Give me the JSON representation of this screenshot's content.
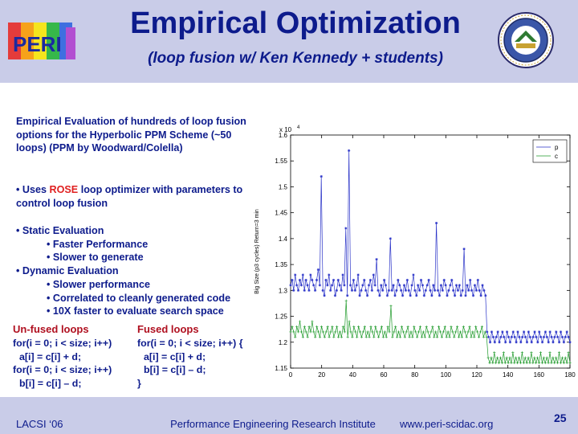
{
  "header": {
    "title": "Empirical Optimization",
    "subtitle": "(loop fusion w/ Ken Kennedy + students)",
    "logo_text": "PERI"
  },
  "intro_text": "Empirical Evaluation of hundreds of loop fusion options for the Hyperbolic PPM Scheme (~50 loops) (PPM by Woodward/Colella)",
  "rose_line": {
    "prefix": "• Uses ",
    "highlight": "ROSE",
    "suffix": " loop optimizer with parameters to control loop fusion"
  },
  "evaluations": [
    {
      "text": "• Static Evaluation",
      "level": 0
    },
    {
      "text": "• Faster Performance",
      "level": 1
    },
    {
      "text": "• Slower to generate",
      "level": 1
    },
    {
      "text": "• Dynamic Evaluation",
      "level": 0
    },
    {
      "text": "• Slower performance",
      "level": 1
    },
    {
      "text": "• Correlated to cleanly generated code",
      "level": 1
    },
    {
      "text": "• 10X faster to evaluate search space",
      "level": 1
    }
  ],
  "unfused": {
    "heading": "Un-fused loops",
    "lines": [
      "for(i = 0; i < size; i++)",
      "a[i] = c[i] + d;",
      "for(i = 0; i < size; i++)",
      "b[i] = c[i] – d;"
    ]
  },
  "fused": {
    "heading": "Fused loops",
    "lines": [
      "for(i = 0; i < size; i++) {",
      "a[i] = c[i] + d;",
      "b[i] = c[i] – d;",
      "}"
    ]
  },
  "chart_data": {
    "type": "line",
    "title": "",
    "xlabel": "",
    "ylabel": "Big Size (p3 cycles) Return=3  min",
    "multiplier_label": "x 10",
    "multiplier_exp": "4",
    "xlim": [
      0,
      180
    ],
    "ylim": [
      1.15,
      1.6
    ],
    "xticks": [
      0,
      20,
      40,
      60,
      80,
      100,
      120,
      140,
      160,
      180
    ],
    "yticks": [
      1.15,
      1.2,
      1.25,
      1.3,
      1.35,
      1.4,
      1.45,
      1.5,
      1.55,
      1.6
    ],
    "legend_position": "top-right",
    "colors": {
      "p": "#2a33c8",
      "c": "#1f9a2a"
    },
    "series": [
      {
        "name": "p",
        "values": [
          1.31,
          1.32,
          1.3,
          1.33,
          1.31,
          1.3,
          1.32,
          1.31,
          1.33,
          1.3,
          1.32,
          1.31,
          1.3,
          1.33,
          1.32,
          1.31,
          1.3,
          1.32,
          1.34,
          1.31,
          1.52,
          1.3,
          1.29,
          1.32,
          1.31,
          1.33,
          1.3,
          1.31,
          1.32,
          1.29,
          1.3,
          1.32,
          1.31,
          1.3,
          1.33,
          1.31,
          1.42,
          1.29,
          1.57,
          1.31,
          1.3,
          1.32,
          1.3,
          1.31,
          1.33,
          1.29,
          1.3,
          1.31,
          1.32,
          1.3,
          1.29,
          1.31,
          1.32,
          1.3,
          1.33,
          1.31,
          1.36,
          1.3,
          1.29,
          1.31,
          1.3,
          1.32,
          1.31,
          1.29,
          1.3,
          1.4,
          1.3,
          1.31,
          1.29,
          1.3,
          1.32,
          1.31,
          1.3,
          1.29,
          1.31,
          1.3,
          1.32,
          1.3,
          1.29,
          1.31,
          1.33,
          1.3,
          1.29,
          1.31,
          1.3,
          1.32,
          1.31,
          1.29,
          1.3,
          1.31,
          1.32,
          1.3,
          1.29,
          1.31,
          1.3,
          1.43,
          1.3,
          1.29,
          1.31,
          1.3,
          1.32,
          1.31,
          1.29,
          1.3,
          1.31,
          1.32,
          1.3,
          1.29,
          1.31,
          1.3,
          1.31,
          1.29,
          1.3,
          1.38,
          1.29,
          1.31,
          1.3,
          1.32,
          1.3,
          1.29,
          1.31,
          1.3,
          1.32,
          1.3,
          1.29,
          1.31,
          1.3,
          1.29,
          1.22,
          1.21,
          1.2,
          1.22,
          1.21,
          1.2,
          1.21,
          1.22,
          1.2,
          1.21,
          1.22,
          1.21,
          1.2,
          1.22,
          1.21,
          1.2,
          1.21,
          1.22,
          1.21,
          1.2,
          1.22,
          1.21,
          1.2,
          1.21,
          1.22,
          1.21,
          1.2,
          1.22,
          1.21,
          1.2,
          1.21,
          1.22,
          1.21,
          1.2,
          1.22,
          1.21,
          1.2,
          1.21,
          1.22,
          1.21,
          1.2,
          1.22,
          1.21,
          1.2,
          1.21,
          1.22,
          1.21,
          1.2,
          1.22,
          1.21,
          1.2,
          1.21,
          1.22,
          1.21,
          1.2
        ]
      },
      {
        "name": "c",
        "values": [
          1.22,
          1.23,
          1.22,
          1.21,
          1.23,
          1.22,
          1.24,
          1.22,
          1.21,
          1.23,
          1.22,
          1.21,
          1.23,
          1.22,
          1.24,
          1.22,
          1.21,
          1.23,
          1.22,
          1.21,
          1.23,
          1.22,
          1.21,
          1.22,
          1.23,
          1.21,
          1.22,
          1.23,
          1.21,
          1.22,
          1.23,
          1.21,
          1.22,
          1.21,
          1.23,
          1.22,
          1.28,
          1.21,
          1.24,
          1.22,
          1.21,
          1.23,
          1.22,
          1.21,
          1.23,
          1.22,
          1.21,
          1.22,
          1.23,
          1.21,
          1.22,
          1.21,
          1.23,
          1.22,
          1.21,
          1.23,
          1.22,
          1.21,
          1.22,
          1.23,
          1.21,
          1.22,
          1.21,
          1.23,
          1.22,
          1.27,
          1.21,
          1.22,
          1.23,
          1.21,
          1.22,
          1.21,
          1.23,
          1.22,
          1.21,
          1.22,
          1.23,
          1.21,
          1.22,
          1.21,
          1.23,
          1.22,
          1.21,
          1.22,
          1.23,
          1.21,
          1.22,
          1.21,
          1.23,
          1.22,
          1.21,
          1.22,
          1.23,
          1.21,
          1.22,
          1.21,
          1.23,
          1.22,
          1.21,
          1.22,
          1.23,
          1.21,
          1.22,
          1.21,
          1.23,
          1.22,
          1.21,
          1.22,
          1.23,
          1.21,
          1.22,
          1.21,
          1.23,
          1.22,
          1.21,
          1.22,
          1.23,
          1.21,
          1.22,
          1.21,
          1.23,
          1.22,
          1.21,
          1.22,
          1.23,
          1.21,
          1.22,
          1.21,
          1.17,
          1.16,
          1.17,
          1.16,
          1.18,
          1.16,
          1.17,
          1.16,
          1.17,
          1.16,
          1.18,
          1.16,
          1.17,
          1.16,
          1.17,
          1.16,
          1.18,
          1.16,
          1.17,
          1.16,
          1.17,
          1.16,
          1.18,
          1.16,
          1.17,
          1.16,
          1.17,
          1.16,
          1.18,
          1.16,
          1.17,
          1.16,
          1.17,
          1.16,
          1.18,
          1.16,
          1.17,
          1.16,
          1.17,
          1.16,
          1.18,
          1.16,
          1.17,
          1.16,
          1.17,
          1.16,
          1.18,
          1.16,
          1.17,
          1.16,
          1.17,
          1.16,
          1.18,
          1.16
        ]
      }
    ]
  },
  "footer": {
    "left": "LACSI ‘06",
    "center": "Performance Engineering Research Institute",
    "right": "www.peri-scidac.org",
    "page": "25"
  }
}
